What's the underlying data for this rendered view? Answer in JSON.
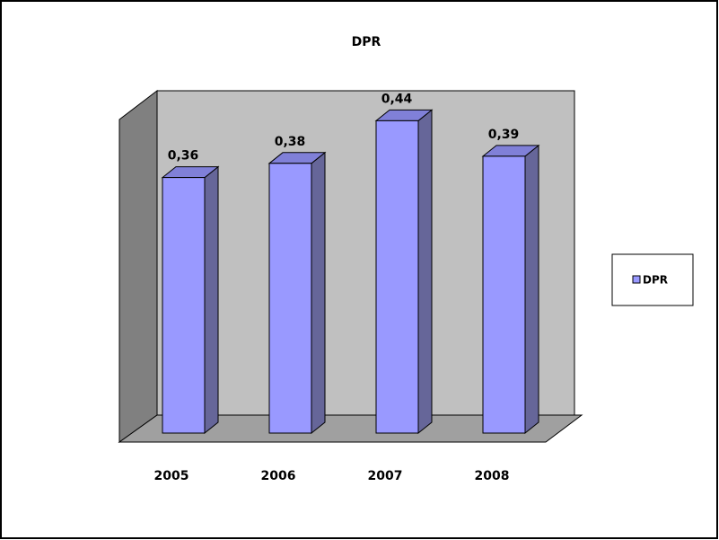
{
  "chart_data": {
    "type": "bar3d",
    "title": "DPR",
    "categories": [
      "2005",
      "2006",
      "2007",
      "2008"
    ],
    "series": [
      {
        "name": "DPR",
        "color": "#9999ff",
        "values": [
          0.36,
          0.38,
          0.44,
          0.39
        ],
        "value_labels": [
          "0,36",
          "0,38",
          "0,44",
          "0,39"
        ]
      }
    ],
    "legend": "right"
  }
}
